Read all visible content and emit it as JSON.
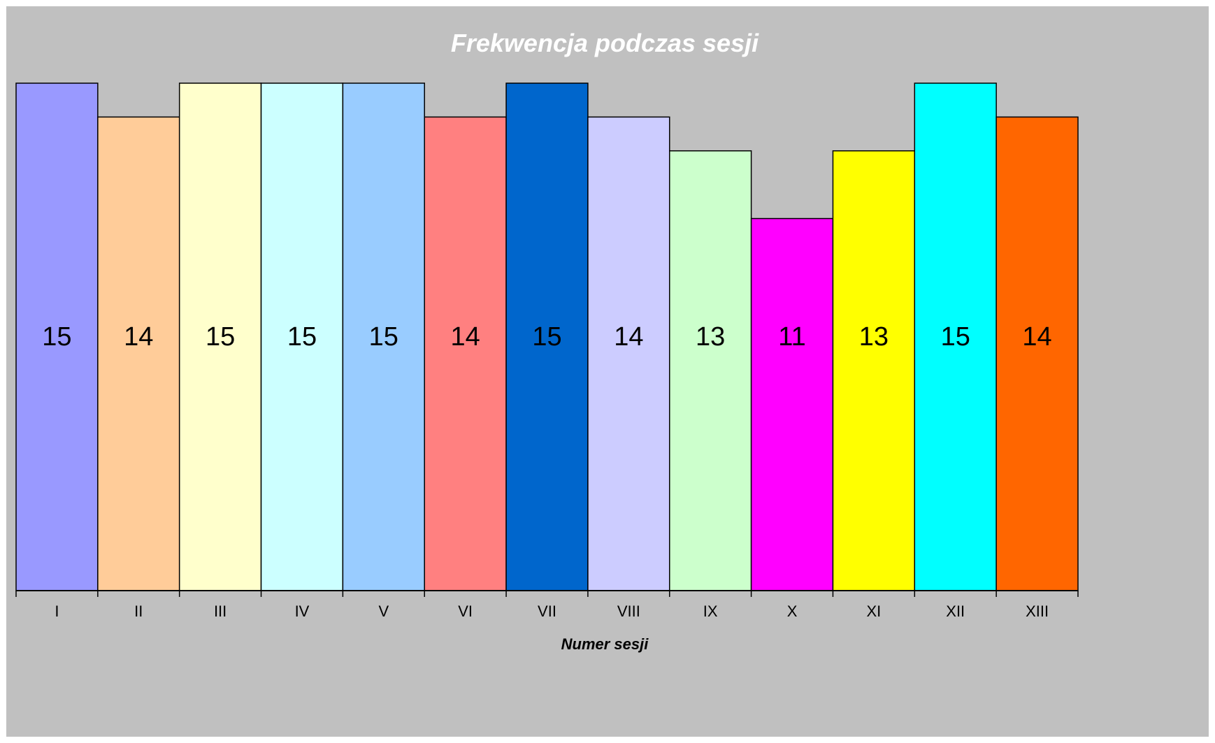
{
  "chart_data": {
    "type": "bar",
    "title": "Frekwencja podczas sesji",
    "xlabel": "Numer sesji",
    "ylabel": "",
    "ylim": [
      0,
      15
    ],
    "categories": [
      "I",
      "II",
      "III",
      "IV",
      "V",
      "VI",
      "VII",
      "VIII",
      "IX",
      "X",
      "XI",
      "XII",
      "XIII"
    ],
    "values": [
      15,
      14,
      15,
      15,
      15,
      14,
      15,
      14,
      13,
      11,
      13,
      15,
      14
    ],
    "colors": [
      "#9999ff",
      "#ffcc99",
      "#ffffcc",
      "#ccffff",
      "#99ccff",
      "#ff8080",
      "#0066cc",
      "#ccccff",
      "#ccffcc",
      "#ff00ff",
      "#ffff00",
      "#00ffff",
      "#ff6600"
    ],
    "data_labels": [
      "15",
      "14",
      "15",
      "15",
      "15",
      "14",
      "15",
      "14",
      "13",
      "11",
      "13",
      "15",
      "14"
    ],
    "grid": false,
    "legend": "none",
    "background": "#c0c0c0"
  }
}
